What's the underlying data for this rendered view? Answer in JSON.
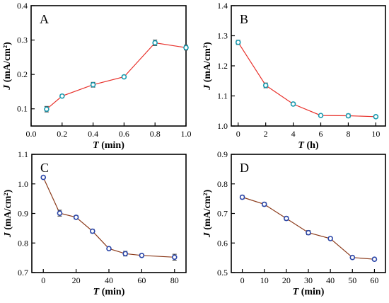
{
  "chart_data": [
    {
      "type": "line",
      "panel_label": "A",
      "xlabel_italic": "T",
      "xlabel_unit": "(min)",
      "ylabel_italic": "J",
      "ylabel_unit": "(mA/cm²)",
      "xlim": [
        0.0,
        1.0
      ],
      "ylim": [
        0.05,
        0.4
      ],
      "xticks": [
        0.0,
        0.2,
        0.4,
        0.6,
        0.8,
        1.0
      ],
      "xtick_labels": [
        "0.0",
        "0.2",
        "0.4",
        "0.6",
        "0.8",
        "1.0"
      ],
      "yticks": [
        0.1,
        0.2,
        0.3,
        0.4
      ],
      "ytick_labels": [
        "0.1",
        "0.2",
        "0.3",
        "0.4"
      ],
      "series": [
        {
          "x": [
            0.1,
            0.2,
            0.4,
            0.6,
            0.8,
            1.0
          ],
          "y": [
            0.099,
            0.137,
            0.17,
            0.193,
            0.292,
            0.278
          ],
          "err": [
            0.008,
            0.004,
            0.007,
            0.004,
            0.008,
            0.007
          ]
        }
      ]
    },
    {
      "type": "line",
      "panel_label": "B",
      "xlabel_italic": "T",
      "xlabel_unit": "(h)",
      "ylabel_italic": "J",
      "ylabel_unit": "(mA/cm²)",
      "xlim": [
        -0.5,
        10.7
      ],
      "ylim": [
        1.0,
        1.4
      ],
      "xticks": [
        0,
        2,
        4,
        6,
        8,
        10
      ],
      "xtick_labels": [
        "0",
        "2",
        "4",
        "6",
        "8",
        "10"
      ],
      "yticks": [
        1.0,
        1.1,
        1.2,
        1.3,
        1.4
      ],
      "ytick_labels": [
        "1.0",
        "1.1",
        "1.2",
        "1.3",
        "1.4"
      ],
      "series": [
        {
          "x": [
            0,
            2,
            4,
            6,
            8,
            10
          ],
          "y": [
            1.278,
            1.135,
            1.073,
            1.035,
            1.034,
            1.031
          ],
          "err": [
            0.007,
            0.008,
            0.005,
            0.004,
            0.006,
            0.004
          ]
        }
      ]
    },
    {
      "type": "line",
      "panel_label": "C",
      "xlabel_italic": "T",
      "xlabel_unit": "(min)",
      "ylabel_italic": "J",
      "ylabel_unit": "(mA/cm²)",
      "xlim": [
        -7,
        87
      ],
      "ylim": [
        0.7,
        1.1
      ],
      "xticks": [
        0,
        20,
        40,
        60,
        80
      ],
      "xtick_labels": [
        "0",
        "20",
        "40",
        "60",
        "80"
      ],
      "yticks": [
        0.7,
        0.8,
        0.9,
        1.0,
        1.1
      ],
      "ytick_labels": [
        "0.7",
        "0.8",
        "0.9",
        "1.0",
        "1.1"
      ],
      "series": [
        {
          "x": [
            0,
            10,
            20,
            30,
            40,
            50,
            60,
            80
          ],
          "y": [
            1.022,
            0.901,
            0.887,
            0.84,
            0.781,
            0.764,
            0.758,
            0.752
          ],
          "err": [
            0.005,
            0.01,
            0.006,
            0.006,
            0.005,
            0.008,
            0.005,
            0.01
          ]
        }
      ]
    },
    {
      "type": "line",
      "panel_label": "D",
      "xlabel_italic": "T",
      "xlabel_unit": "(min)",
      "ylabel_italic": "J",
      "ylabel_unit": "(mA/cm²)",
      "xlim": [
        -5,
        65
      ],
      "ylim": [
        0.5,
        0.9
      ],
      "xticks": [
        0,
        10,
        20,
        30,
        40,
        50,
        60
      ],
      "xtick_labels": [
        "0",
        "10",
        "20",
        "30",
        "40",
        "50",
        "60"
      ],
      "yticks": [
        0.5,
        0.6,
        0.7,
        0.8,
        0.9
      ],
      "ytick_labels": [
        "0.5",
        "0.6",
        "0.7",
        "0.8",
        "0.9"
      ],
      "series": [
        {
          "x": [
            0,
            10,
            20,
            30,
            40,
            50,
            60
          ],
          "y": [
            0.755,
            0.731,
            0.683,
            0.635,
            0.615,
            0.551,
            0.545
          ],
          "err": [
            0.006,
            0.006,
            0.006,
            0.007,
            0.005,
            0.005,
            0.005
          ]
        }
      ]
    }
  ],
  "colors": {
    "line_ab": "#e8302a",
    "line_cd": "#8b3a1a",
    "marker_ab": "#1a9bb0",
    "marker_cd": "#2a45a8",
    "axis": "#000000"
  }
}
